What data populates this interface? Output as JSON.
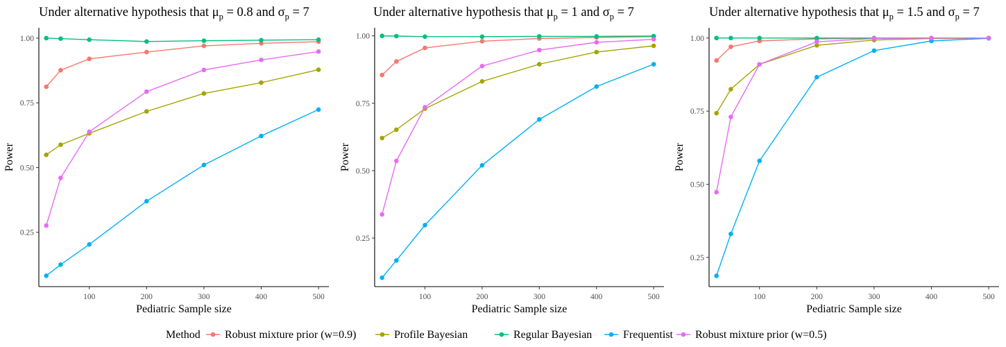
{
  "legend": {
    "title": "Method",
    "entries": [
      {
        "label": "Robust mixture prior (w=0.9)",
        "color": "#F8766D"
      },
      {
        "label": "Profile Bayesian",
        "color": "#A3A500"
      },
      {
        "label": "Regular Bayesian",
        "color": "#00BF7D"
      },
      {
        "label": "Frequentist",
        "color": "#00B0F6"
      },
      {
        "label": "Robust mixture prior (w=0.5)",
        "color": "#E76BF3"
      }
    ]
  },
  "chart_data": [
    {
      "type": "line",
      "title": {
        "prefix": "Under alternative hypothesis that ",
        "mu": "μ",
        "sub": "p",
        "mu_value": " = 0.8 and ",
        "sigma": "σ",
        "sigma_value": " = 7"
      },
      "xlabel": "Pediatric Sample size",
      "ylabel": "Power",
      "xlim": [
        12,
        518
      ],
      "ylim": [
        0.04,
        1.04
      ],
      "xticks": [
        100,
        200,
        300,
        400,
        500
      ],
      "yticks": [
        0.25,
        0.5,
        0.75,
        1.0
      ],
      "ytick_labels": [
        "0.25",
        "0.50",
        "0.75",
        "1.00"
      ],
      "x": [
        25,
        50,
        100,
        200,
        300,
        400,
        500
      ],
      "series": [
        {
          "name": "Robust mixture prior (w=0.9)",
          "color": "#F8766D",
          "values": [
            0.812,
            0.876,
            0.92,
            0.946,
            0.97,
            0.98,
            0.986
          ]
        },
        {
          "name": "Profile Bayesian",
          "color": "#A3A500",
          "values": [
            0.549,
            0.588,
            0.632,
            0.717,
            0.786,
            0.828,
            0.878
          ]
        },
        {
          "name": "Regular Bayesian",
          "color": "#00BF7D",
          "values": [
            1.0,
            0.998,
            0.994,
            0.987,
            0.99,
            0.992,
            0.994
          ]
        },
        {
          "name": "Frequentist",
          "color": "#00B0F6",
          "values": [
            0.082,
            0.125,
            0.203,
            0.37,
            0.51,
            0.622,
            0.724
          ]
        },
        {
          "name": "Robust mixture prior (w=0.5)",
          "color": "#E76BF3",
          "values": [
            0.276,
            0.46,
            0.638,
            0.793,
            0.877,
            0.916,
            0.948
          ]
        }
      ]
    },
    {
      "type": "line",
      "title": {
        "prefix": "Under alternative hypothesis that ",
        "mu": "μ",
        "sub": "p",
        "mu_value": " = 1 and ",
        "sigma": "σ",
        "sigma_value": " = 7"
      },
      "xlabel": "Pediatric Sample size",
      "ylabel": "Power",
      "xlim": [
        12,
        518
      ],
      "ylim": [
        0.07,
        1.03
      ],
      "xticks": [
        100,
        200,
        300,
        400,
        500
      ],
      "yticks": [
        0.25,
        0.5,
        0.75,
        1.0
      ],
      "ytick_labels": [
        "0.25",
        "0.50",
        "0.75",
        "1.00"
      ],
      "x": [
        25,
        50,
        100,
        200,
        300,
        400,
        500
      ],
      "series": [
        {
          "name": "Robust mixture prior (w=0.9)",
          "color": "#F8766D",
          "values": [
            0.855,
            0.905,
            0.955,
            0.98,
            0.99,
            0.994,
            0.997
          ]
        },
        {
          "name": "Profile Bayesian",
          "color": "#A3A500",
          "values": [
            0.621,
            0.652,
            0.73,
            0.831,
            0.895,
            0.94,
            0.963
          ]
        },
        {
          "name": "Regular Bayesian",
          "color": "#00BF7D",
          "values": [
            1.0,
            0.999,
            0.997,
            0.997,
            0.998,
            0.998,
            0.999
          ]
        },
        {
          "name": "Frequentist",
          "color": "#00B0F6",
          "values": [
            0.103,
            0.167,
            0.298,
            0.52,
            0.69,
            0.812,
            0.895
          ]
        },
        {
          "name": "Robust mixture prior (w=0.5)",
          "color": "#E76BF3",
          "values": [
            0.338,
            0.536,
            0.735,
            0.888,
            0.947,
            0.976,
            0.987
          ]
        }
      ]
    },
    {
      "type": "line",
      "title": {
        "prefix": "Under alternative hypothesis that ",
        "mu": "μ",
        "sub": "p",
        "mu_value": " = 1.5 and ",
        "sigma": "σ",
        "sigma_value": " = 7"
      },
      "xlabel": "Pediatric Sample size",
      "ylabel": "Power",
      "xlim": [
        12,
        518
      ],
      "ylim": [
        0.15,
        1.035
      ],
      "xticks": [
        100,
        200,
        300,
        400,
        500
      ],
      "yticks": [
        0.25,
        0.5,
        0.75,
        1.0
      ],
      "ytick_labels": [
        "0.25",
        "0.50",
        "0.75",
        "1.00"
      ],
      "x": [
        25,
        50,
        100,
        200,
        300,
        400,
        500
      ],
      "series": [
        {
          "name": "Robust mixture prior (w=0.9)",
          "color": "#F8766D",
          "values": [
            0.923,
            0.97,
            0.99,
            0.997,
            0.999,
            1.0,
            1.0
          ]
        },
        {
          "name": "Profile Bayesian",
          "color": "#A3A500",
          "values": [
            0.743,
            0.825,
            0.91,
            0.975,
            0.993,
            0.998,
            0.999
          ]
        },
        {
          "name": "Regular Bayesian",
          "color": "#00BF7D",
          "values": [
            1.0,
            1.0,
            1.0,
            1.0,
            1.0,
            1.0,
            1.0
          ]
        },
        {
          "name": "Frequentist",
          "color": "#00B0F6",
          "values": [
            0.187,
            0.33,
            0.58,
            0.866,
            0.957,
            0.99,
            0.999
          ]
        },
        {
          "name": "Robust mixture prior (w=0.5)",
          "color": "#E76BF3",
          "values": [
            0.473,
            0.73,
            0.91,
            0.987,
            0.998,
            1.0,
            1.0
          ]
        }
      ]
    }
  ]
}
